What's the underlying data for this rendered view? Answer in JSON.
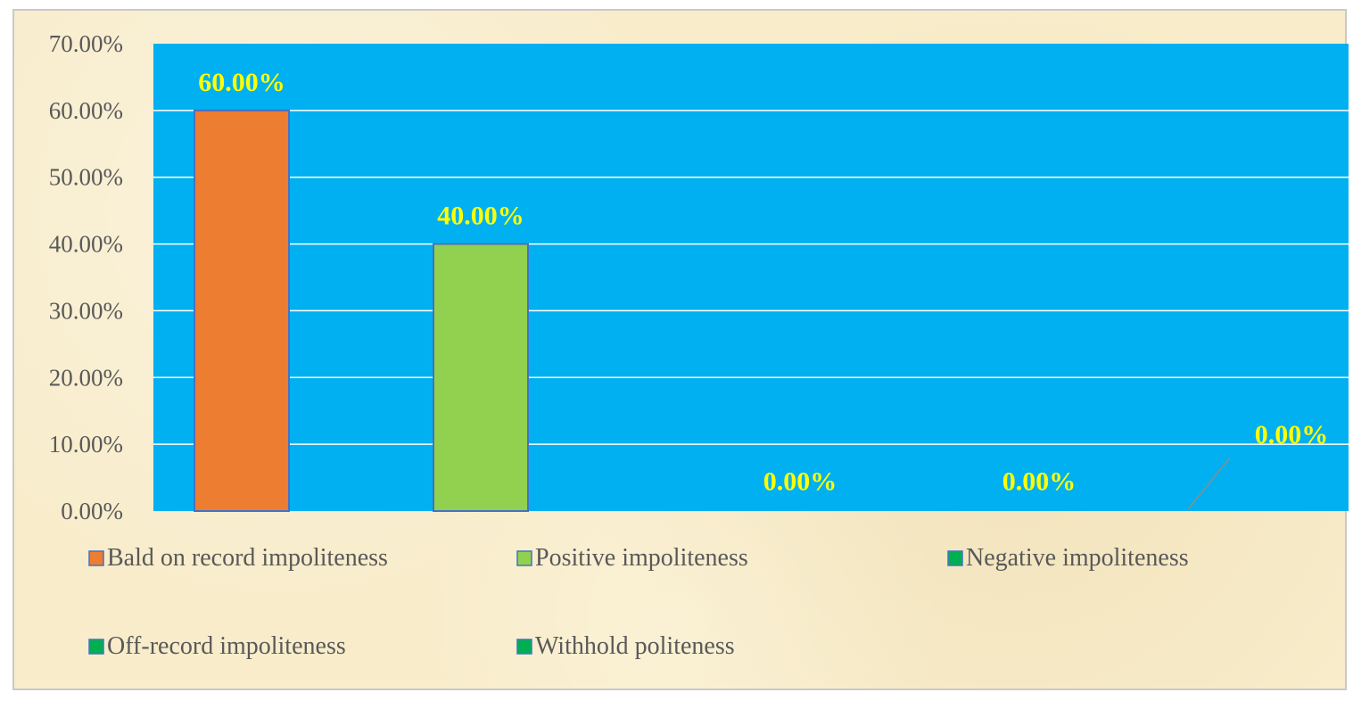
{
  "chart_data": {
    "type": "bar",
    "title": "",
    "xlabel": "",
    "ylabel": "",
    "categories": [
      "Bald on record impoliteness",
      "Positive impoliteness",
      "Negative impoliteness",
      "Off-record impoliteness",
      "Withhold politeness"
    ],
    "values": [
      0.6,
      0.4,
      0.0,
      0.0,
      0.0
    ],
    "data_labels": [
      "60.00%",
      "40.00%",
      "0.00%",
      "0.00%",
      "0.00%"
    ],
    "colors": [
      "#ed7d31",
      "#92d050",
      "#00b050",
      "#00b050",
      "#00b050"
    ],
    "bar_border_color": "#4472c4",
    "ylim": [
      0,
      0.7
    ],
    "y_ticks": [
      "0.00%",
      "10.00%",
      "20.00%",
      "30.00%",
      "40.00%",
      "50.00%",
      "60.00%",
      "70.00%"
    ],
    "plot_background": "#00b0f0",
    "gridlines": true,
    "gridline_color": "#ffffff",
    "data_label_color": "#ffff00",
    "legend_position": "bottom",
    "legend": [
      {
        "label": "Bald on record impoliteness",
        "color": "#ed7d31"
      },
      {
        "label": "Positive impoliteness",
        "color": "#92d050"
      },
      {
        "label": "Negative impoliteness",
        "color": "#00b050"
      },
      {
        "label": "Off-record impoliteness",
        "color": "#00b050"
      },
      {
        "label": "Withhold politeness",
        "color": "#00b050"
      }
    ]
  }
}
